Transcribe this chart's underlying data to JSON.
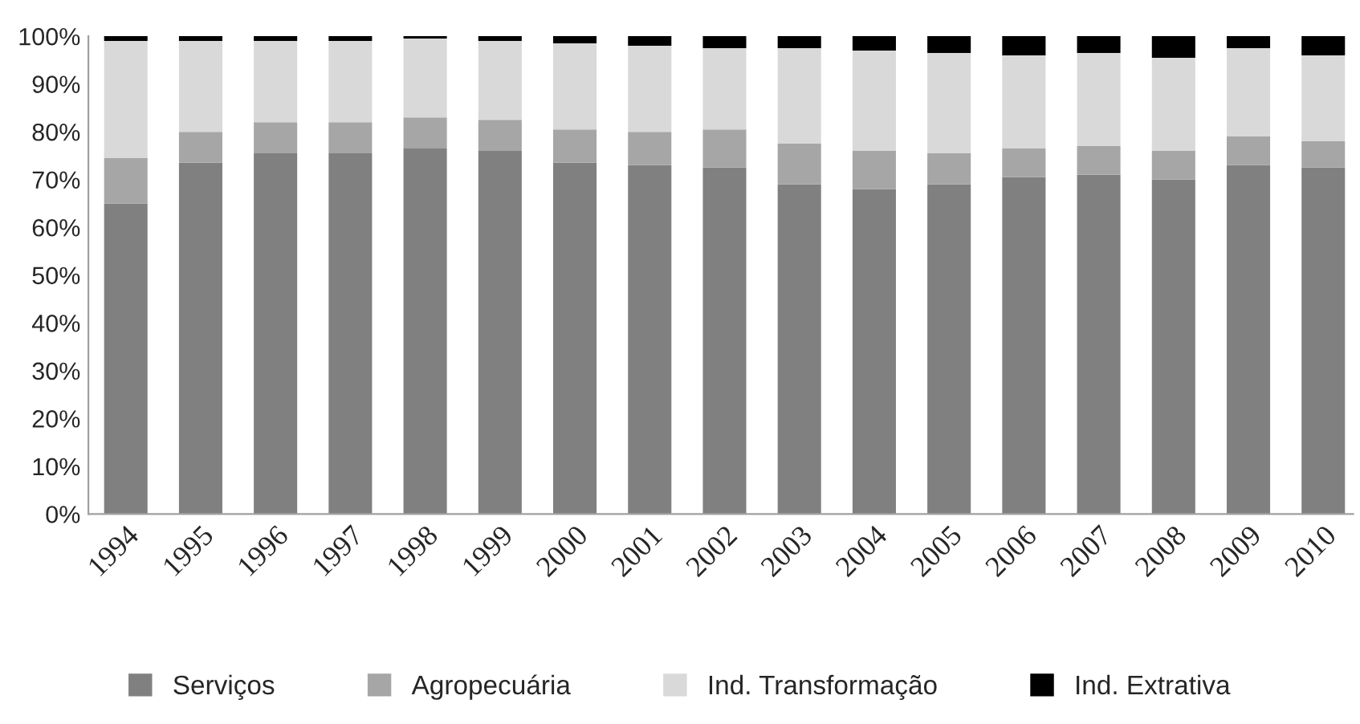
{
  "chart_data": {
    "type": "bar",
    "stacked": true,
    "categories": [
      "1994",
      "1995",
      "1996",
      "1997",
      "1998",
      "1999",
      "2000",
      "2001",
      "2002",
      "2003",
      "2004",
      "2005",
      "2006",
      "2007",
      "2008",
      "2009",
      "2010"
    ],
    "series": [
      {
        "name": "Serviços",
        "color": "#808080",
        "values": [
          65,
          73.5,
          75.5,
          75.5,
          76.5,
          76,
          73.5,
          73,
          72.5,
          69,
          68,
          69,
          70.5,
          71,
          70,
          73,
          72.5
        ]
      },
      {
        "name": "Agropecuária",
        "color": "#a6a6a6",
        "values": [
          9.5,
          6.5,
          6.5,
          6.5,
          6.5,
          6.5,
          7,
          7,
          8,
          8.5,
          8,
          6.5,
          6,
          6,
          6,
          6,
          5.5
        ]
      },
      {
        "name": "Ind. Transformação",
        "color": "#d9d9d9",
        "values": [
          24.5,
          19,
          17,
          17,
          16.5,
          16.5,
          18,
          18,
          17,
          20,
          21,
          21,
          19.5,
          19.5,
          19.5,
          18.5,
          18
        ]
      },
      {
        "name": "Ind. Extrativa",
        "color": "#000000",
        "values": [
          1,
          1,
          1,
          1,
          0.5,
          1,
          1.5,
          2,
          2.5,
          2.5,
          3,
          3.5,
          4,
          3.5,
          4.5,
          2.5,
          4
        ]
      }
    ],
    "ylim": [
      0,
      100
    ],
    "yticks": [
      {
        "value": 0,
        "label": "0%"
      },
      {
        "value": 10,
        "label": "10%"
      },
      {
        "value": 20,
        "label": "20%"
      },
      {
        "value": 30,
        "label": "30%"
      },
      {
        "value": 40,
        "label": "40%"
      },
      {
        "value": 50,
        "label": "50%"
      },
      {
        "value": 60,
        "label": "60%"
      },
      {
        "value": 70,
        "label": "70%"
      },
      {
        "value": 80,
        "label": "80%"
      },
      {
        "value": 90,
        "label": "90%"
      },
      {
        "value": 100,
        "label": "100%"
      }
    ],
    "grid": false,
    "legend": "bottom"
  }
}
